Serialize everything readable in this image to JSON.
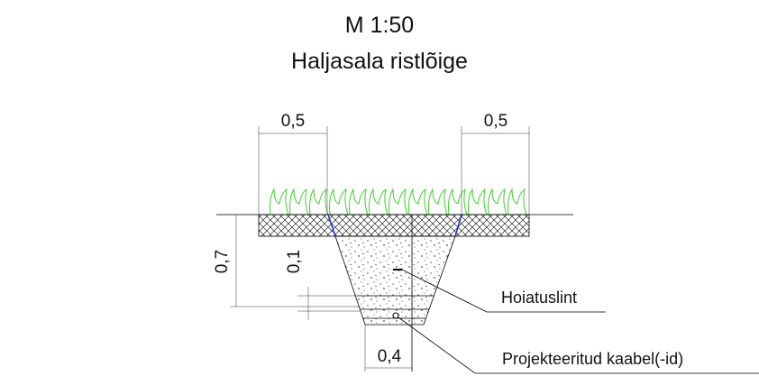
{
  "header": {
    "scale": "M 1:50",
    "title": "Haljasala ristlõige"
  },
  "dimensions": {
    "top_left": "0,5",
    "top_right": "0,5",
    "depth": "0,7",
    "cover": "0,1",
    "bottom_width": "0,4"
  },
  "callouts": {
    "warning_tape": "Hoiatuslint",
    "cable": "Projekteeritud kaabel(-id)"
  }
}
